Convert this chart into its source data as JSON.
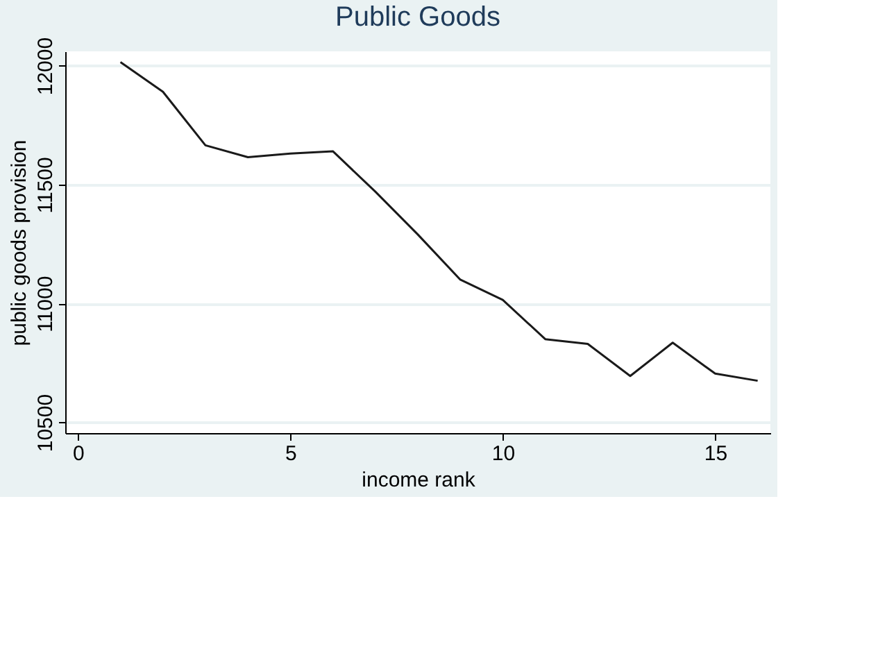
{
  "chart_data": {
    "type": "line",
    "title": "Public Goods",
    "xlabel": "income rank",
    "ylabel": "public goods provision",
    "x": [
      1,
      2,
      3,
      4,
      5,
      6,
      7,
      8,
      9,
      10,
      11,
      12,
      13,
      14,
      15,
      16
    ],
    "series": [
      {
        "color": "#1a1a1a",
        "values": [
          12015,
          11890,
          11665,
          11615,
          11630,
          11640,
          11470,
          11290,
          11100,
          11015,
          10850,
          10830,
          10695,
          10835,
          10705,
          10675
        ]
      }
    ],
    "xlim": [
      -0.3,
      16.3
    ],
    "ylim": [
      10455,
      12060
    ],
    "xticks": [
      0,
      5,
      10,
      15
    ],
    "yticks": [
      10500,
      11000,
      11500,
      12000
    ],
    "grid": "y",
    "legend": false,
    "marker": "none",
    "line_style": "solid"
  }
}
